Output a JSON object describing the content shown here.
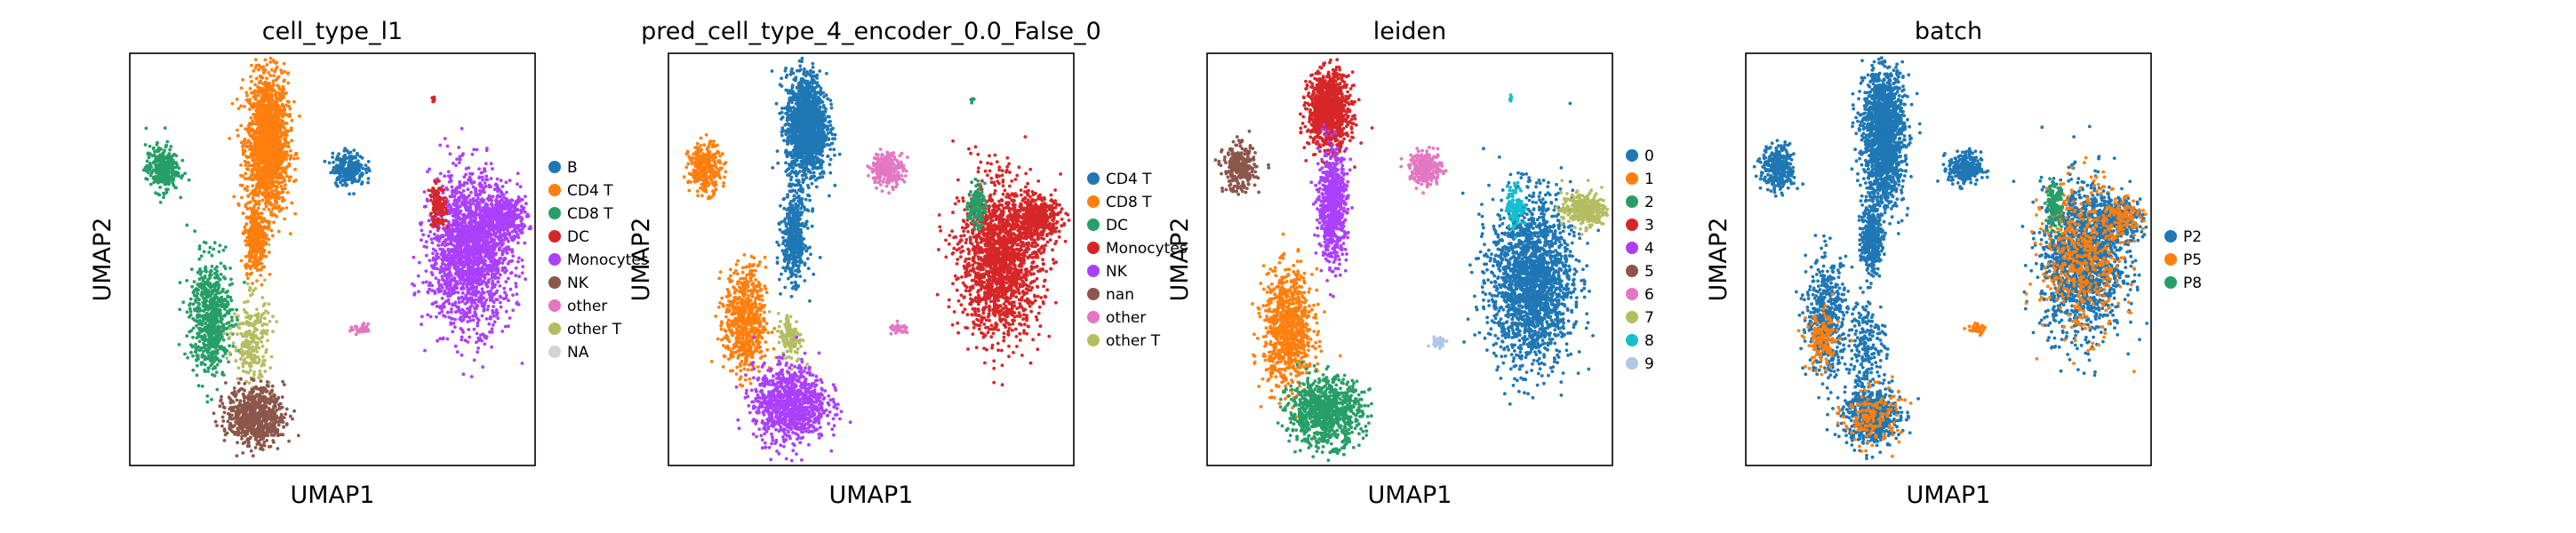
{
  "chart_data": [
    {
      "type": "scatter",
      "title": "cell_type_l1",
      "xlabel": "UMAP1",
      "ylabel": "UMAP2",
      "grid": false,
      "legend_position": "right",
      "legend": [
        {
          "name": "B",
          "color": "#1f77b4"
        },
        {
          "name": "CD4 T",
          "color": "#ff7f0e"
        },
        {
          "name": "CD8 T",
          "color": "#279e68"
        },
        {
          "name": "DC",
          "color": "#d62728"
        },
        {
          "name": "Monocytes",
          "color": "#aa40fc"
        },
        {
          "name": "NK",
          "color": "#8c564b"
        },
        {
          "name": "other",
          "color": "#e377c2"
        },
        {
          "name": "other T",
          "color": "#b5bd61"
        },
        {
          "name": "NA",
          "color": "#d3d3d3"
        }
      ],
      "clusters": [
        {
          "label": "CD4 T",
          "cx": 0.34,
          "cy": 0.78,
          "rx": 0.05,
          "ry": 0.17,
          "n": 1700
        },
        {
          "label": "CD4 T",
          "cx": 0.31,
          "cy": 0.55,
          "rx": 0.025,
          "ry": 0.08,
          "n": 350
        },
        {
          "label": "CD8 T",
          "cx": 0.08,
          "cy": 0.72,
          "rx": 0.04,
          "ry": 0.055,
          "n": 300
        },
        {
          "label": "B",
          "cx": 0.54,
          "cy": 0.72,
          "rx": 0.04,
          "ry": 0.04,
          "n": 250
        },
        {
          "label": "Monocytes",
          "cx": 0.84,
          "cy": 0.52,
          "rx": 0.1,
          "ry": 0.18,
          "n": 1900
        },
        {
          "label": "Monocytes",
          "cx": 0.92,
          "cy": 0.6,
          "rx": 0.06,
          "ry": 0.05,
          "n": 400
        },
        {
          "label": "DC",
          "cx": 0.76,
          "cy": 0.63,
          "rx": 0.02,
          "ry": 0.05,
          "n": 130
        },
        {
          "label": "DC",
          "cx": 0.75,
          "cy": 0.89,
          "rx": 0.004,
          "ry": 0.008,
          "n": 8
        },
        {
          "label": "CD8 T",
          "cx": 0.2,
          "cy": 0.36,
          "rx": 0.05,
          "ry": 0.14,
          "n": 650
        },
        {
          "label": "other T",
          "cx": 0.3,
          "cy": 0.3,
          "rx": 0.045,
          "ry": 0.11,
          "n": 260
        },
        {
          "label": "NK",
          "cx": 0.31,
          "cy": 0.12,
          "rx": 0.07,
          "ry": 0.07,
          "n": 700
        },
        {
          "label": "other",
          "cx": 0.57,
          "cy": 0.33,
          "rx": 0.025,
          "ry": 0.012,
          "n": 40
        }
      ]
    },
    {
      "type": "scatter",
      "title": "pred_cell_type_4_encoder_0.0_False_0",
      "xlabel": "UMAP1",
      "ylabel": "UMAP2",
      "grid": false,
      "legend_position": "right",
      "legend": [
        {
          "name": "CD4 T",
          "color": "#1f77b4"
        },
        {
          "name": "CD8 T",
          "color": "#ff7f0e"
        },
        {
          "name": "DC",
          "color": "#279e68"
        },
        {
          "name": "Monocytes",
          "color": "#d62728"
        },
        {
          "name": "NK",
          "color": "#aa40fc"
        },
        {
          "name": "nan",
          "color": "#8c564b"
        },
        {
          "name": "other",
          "color": "#e377c2"
        },
        {
          "name": "other T",
          "color": "#b5bd61"
        }
      ],
      "clusters": [
        {
          "label": "CD4 T",
          "cx": 0.34,
          "cy": 0.82,
          "rx": 0.05,
          "ry": 0.13,
          "n": 1500
        },
        {
          "label": "CD4 T",
          "cx": 0.31,
          "cy": 0.55,
          "rx": 0.03,
          "ry": 0.1,
          "n": 450
        },
        {
          "label": "CD8 T",
          "cx": 0.09,
          "cy": 0.72,
          "rx": 0.04,
          "ry": 0.06,
          "n": 300
        },
        {
          "label": "other",
          "cx": 0.54,
          "cy": 0.72,
          "rx": 0.04,
          "ry": 0.04,
          "n": 250
        },
        {
          "label": "Monocytes",
          "cx": 0.82,
          "cy": 0.5,
          "rx": 0.1,
          "ry": 0.18,
          "n": 1800
        },
        {
          "label": "Monocytes",
          "cx": 0.91,
          "cy": 0.6,
          "rx": 0.06,
          "ry": 0.05,
          "n": 400
        },
        {
          "label": "DC",
          "cx": 0.76,
          "cy": 0.63,
          "rx": 0.02,
          "ry": 0.05,
          "n": 130
        },
        {
          "label": "DC",
          "cx": 0.75,
          "cy": 0.89,
          "rx": 0.004,
          "ry": 0.008,
          "n": 8
        },
        {
          "label": "CD8 T",
          "cx": 0.19,
          "cy": 0.35,
          "rx": 0.05,
          "ry": 0.13,
          "n": 650
        },
        {
          "label": "other T",
          "cx": 0.3,
          "cy": 0.31,
          "rx": 0.03,
          "ry": 0.06,
          "n": 130
        },
        {
          "label": "NK",
          "cx": 0.3,
          "cy": 0.15,
          "rx": 0.09,
          "ry": 0.09,
          "n": 1000
        },
        {
          "label": "other",
          "cx": 0.57,
          "cy": 0.33,
          "rx": 0.025,
          "ry": 0.012,
          "n": 40
        }
      ]
    },
    {
      "type": "scatter",
      "title": "leiden",
      "xlabel": "UMAP1",
      "ylabel": "UMAP2",
      "grid": false,
      "legend_position": "right",
      "legend": [
        {
          "name": "0",
          "color": "#1f77b4"
        },
        {
          "name": "1",
          "color": "#ff7f0e"
        },
        {
          "name": "2",
          "color": "#279e68"
        },
        {
          "name": "3",
          "color": "#d62728"
        },
        {
          "name": "4",
          "color": "#aa40fc"
        },
        {
          "name": "5",
          "color": "#8c564b"
        },
        {
          "name": "6",
          "color": "#e377c2"
        },
        {
          "name": "7",
          "color": "#b5bd61"
        },
        {
          "name": "8",
          "color": "#17becf"
        },
        {
          "name": "9",
          "color": "#aec7e8"
        }
      ],
      "clusters": [
        {
          "label": "3",
          "cx": 0.3,
          "cy": 0.86,
          "rx": 0.05,
          "ry": 0.09,
          "n": 1100
        },
        {
          "label": "4",
          "cx": 0.31,
          "cy": 0.63,
          "rx": 0.035,
          "ry": 0.13,
          "n": 700
        },
        {
          "label": "5",
          "cx": 0.08,
          "cy": 0.72,
          "rx": 0.04,
          "ry": 0.055,
          "n": 300
        },
        {
          "label": "6",
          "cx": 0.54,
          "cy": 0.72,
          "rx": 0.04,
          "ry": 0.04,
          "n": 250
        },
        {
          "label": "0",
          "cx": 0.8,
          "cy": 0.45,
          "rx": 0.1,
          "ry": 0.2,
          "n": 2000
        },
        {
          "label": "7",
          "cx": 0.93,
          "cy": 0.62,
          "rx": 0.055,
          "ry": 0.04,
          "n": 350
        },
        {
          "label": "8",
          "cx": 0.76,
          "cy": 0.63,
          "rx": 0.02,
          "ry": 0.05,
          "n": 130
        },
        {
          "label": "8",
          "cx": 0.75,
          "cy": 0.89,
          "rx": 0.004,
          "ry": 0.008,
          "n": 8
        },
        {
          "label": "1",
          "cx": 0.2,
          "cy": 0.33,
          "rx": 0.06,
          "ry": 0.14,
          "n": 900
        },
        {
          "label": "2",
          "cx": 0.29,
          "cy": 0.13,
          "rx": 0.09,
          "ry": 0.08,
          "n": 900
        },
        {
          "label": "9",
          "cx": 0.57,
          "cy": 0.3,
          "rx": 0.02,
          "ry": 0.012,
          "n": 40
        }
      ]
    },
    {
      "type": "scatter",
      "title": "batch",
      "xlabel": "UMAP1",
      "ylabel": "UMAP2",
      "grid": false,
      "legend_position": "right",
      "legend": [
        {
          "name": "P2",
          "color": "#1f77b4"
        },
        {
          "name": "P5",
          "color": "#ff7f0e"
        },
        {
          "name": "P8",
          "color": "#279e68"
        }
      ],
      "clusters": [
        {
          "label": "P2",
          "cx": 0.34,
          "cy": 0.8,
          "rx": 0.05,
          "ry": 0.17,
          "n": 1700
        },
        {
          "label": "P2",
          "cx": 0.31,
          "cy": 0.55,
          "rx": 0.025,
          "ry": 0.08,
          "n": 350
        },
        {
          "label": "P2",
          "cx": 0.08,
          "cy": 0.72,
          "rx": 0.04,
          "ry": 0.055,
          "n": 300
        },
        {
          "label": "P2",
          "cx": 0.54,
          "cy": 0.72,
          "rx": 0.04,
          "ry": 0.04,
          "n": 250
        },
        {
          "label": "P2",
          "cx": 0.83,
          "cy": 0.5,
          "rx": 0.1,
          "ry": 0.18,
          "n": 1500
        },
        {
          "label": "P5",
          "cx": 0.83,
          "cy": 0.5,
          "rx": 0.1,
          "ry": 0.18,
          "n": 500
        },
        {
          "label": "P2",
          "cx": 0.92,
          "cy": 0.6,
          "rx": 0.06,
          "ry": 0.05,
          "n": 300
        },
        {
          "label": "P5",
          "cx": 0.92,
          "cy": 0.6,
          "rx": 0.06,
          "ry": 0.05,
          "n": 150
        },
        {
          "label": "P8",
          "cx": 0.76,
          "cy": 0.63,
          "rx": 0.02,
          "ry": 0.05,
          "n": 130
        },
        {
          "label": "P2",
          "cx": 0.2,
          "cy": 0.36,
          "rx": 0.05,
          "ry": 0.14,
          "n": 500
        },
        {
          "label": "P5",
          "cx": 0.19,
          "cy": 0.3,
          "rx": 0.04,
          "ry": 0.07,
          "n": 150
        },
        {
          "label": "P2",
          "cx": 0.3,
          "cy": 0.3,
          "rx": 0.045,
          "ry": 0.11,
          "n": 200
        },
        {
          "label": "P2",
          "cx": 0.31,
          "cy": 0.12,
          "rx": 0.07,
          "ry": 0.07,
          "n": 550
        },
        {
          "label": "P5",
          "cx": 0.31,
          "cy": 0.12,
          "rx": 0.07,
          "ry": 0.07,
          "n": 150
        },
        {
          "label": "P5",
          "cx": 0.57,
          "cy": 0.33,
          "rx": 0.02,
          "ry": 0.012,
          "n": 40
        }
      ]
    }
  ]
}
